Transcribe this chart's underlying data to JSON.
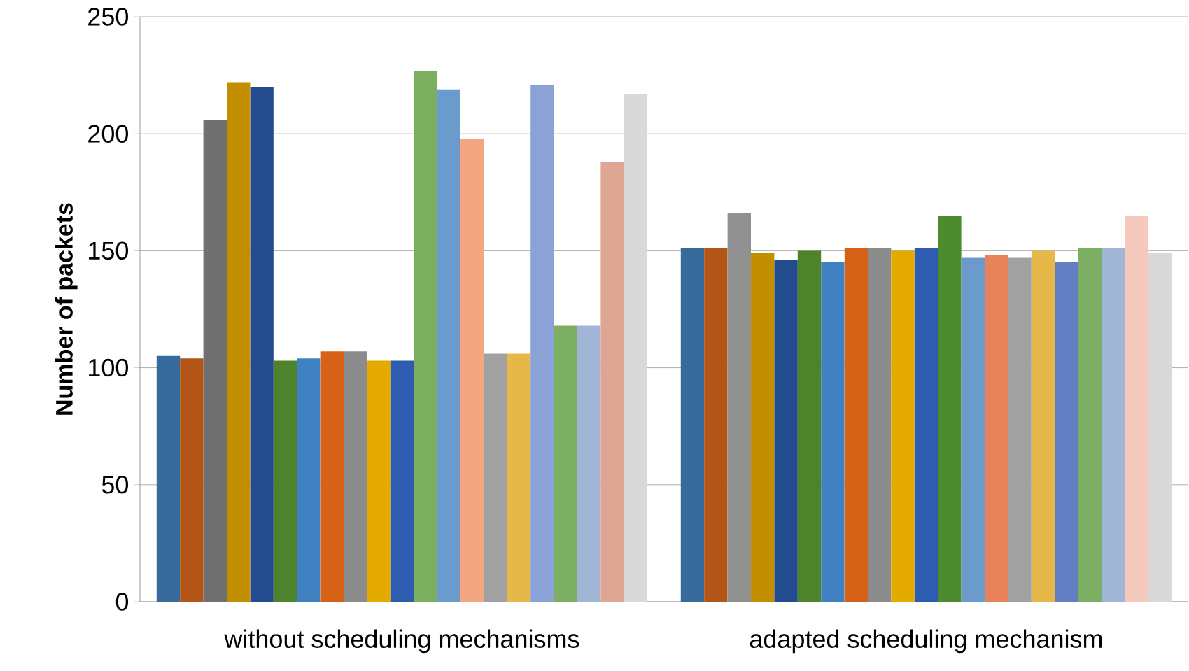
{
  "chart_data": {
    "type": "bar",
    "ylabel": "Number of packets",
    "categories": [
      "without scheduling mechanisms",
      "adapted scheduling mechanism"
    ],
    "ylim": [
      0,
      250
    ],
    "yticks": [
      0,
      50,
      100,
      150,
      200,
      250
    ],
    "grid": "y",
    "series": [
      {
        "colors": [
          "#376b9c",
          "#376b9c"
        ],
        "values": [
          105,
          151
        ]
      },
      {
        "colors": [
          "#b35516",
          "#b35516"
        ],
        "values": [
          104,
          151
        ]
      },
      {
        "colors": [
          "#707070",
          "#919191"
        ],
        "values": [
          206,
          166
        ]
      },
      {
        "colors": [
          "#c28f00",
          "#c28f00"
        ],
        "values": [
          222,
          149
        ]
      },
      {
        "colors": [
          "#234c8f",
          "#234c8f"
        ],
        "values": [
          220,
          146
        ]
      },
      {
        "colors": [
          "#4e832b",
          "#4e832b"
        ],
        "values": [
          103,
          150
        ]
      },
      {
        "colors": [
          "#4081c1",
          "#4081c1"
        ],
        "values": [
          104,
          145
        ]
      },
      {
        "colors": [
          "#d66217",
          "#d66217"
        ],
        "values": [
          107,
          151
        ]
      },
      {
        "colors": [
          "#8c8c8c",
          "#8c8c8c"
        ],
        "values": [
          107,
          151
        ]
      },
      {
        "colors": [
          "#e5aa00",
          "#e5aa00"
        ],
        "values": [
          103,
          150
        ]
      },
      {
        "colors": [
          "#2d5cb0",
          "#2d5cb0"
        ],
        "values": [
          103,
          151
        ]
      },
      {
        "colors": [
          "#7cae5f",
          "#4e8a2e"
        ],
        "values": [
          227,
          165
        ]
      },
      {
        "colors": [
          "#6b9bcd",
          "#6b9bcd"
        ],
        "values": [
          219,
          147
        ]
      },
      {
        "colors": [
          "#f4a582",
          "#e8825a"
        ],
        "values": [
          198,
          148
        ]
      },
      {
        "colors": [
          "#a1a1a1",
          "#a1a1a1"
        ],
        "values": [
          106,
          147
        ]
      },
      {
        "colors": [
          "#e6b84a",
          "#e6b84a"
        ],
        "values": [
          106,
          150
        ]
      },
      {
        "colors": [
          "#8aa2d6",
          "#617fc2"
        ],
        "values": [
          221,
          145
        ]
      },
      {
        "colors": [
          "#7cae64",
          "#7cae64"
        ],
        "values": [
          118,
          151
        ]
      },
      {
        "colors": [
          "#a1b5d6",
          "#a1b5d6"
        ],
        "values": [
          118,
          151
        ]
      },
      {
        "colors": [
          "#e0a694",
          "#f6c9bd"
        ],
        "values": [
          188,
          165
        ]
      },
      {
        "colors": [
          "#d9d9d9",
          "#d9d9d9"
        ],
        "values": [
          217,
          149
        ]
      }
    ]
  }
}
